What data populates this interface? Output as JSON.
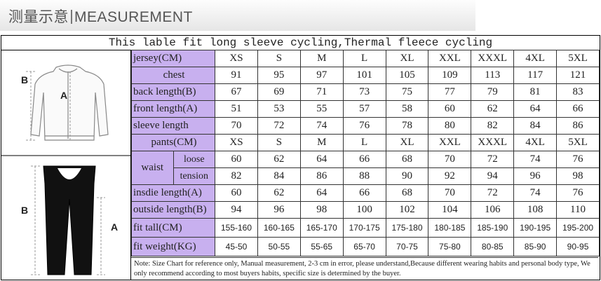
{
  "header": {
    "title_cn": "测量示意",
    "title_en": "MEASUREMENT"
  },
  "caption": "This lable fit long sleeve cycling,Thermal fleece cycling",
  "figure": {
    "jersey_label_b": "B",
    "jersey_label_a": "A",
    "pants_label_b": "B",
    "pants_label_a": "A"
  },
  "jersey_table": {
    "header_label": "jersey(CM)",
    "sizes": [
      "XS",
      "S",
      "M",
      "L",
      "XL",
      "XXL",
      "XXXL",
      "4XL",
      "5XL"
    ],
    "rows": [
      {
        "label": "chest",
        "values": [
          "91",
          "95",
          "97",
          "101",
          "105",
          "109",
          "113",
          "117",
          "121"
        ]
      },
      {
        "label": "back length(B)",
        "values": [
          "67",
          "69",
          "71",
          "73",
          "75",
          "77",
          "79",
          "81",
          "83"
        ]
      },
      {
        "label": "front length(A)",
        "values": [
          "51",
          "53",
          "55",
          "57",
          "58",
          "60",
          "62",
          "64",
          "66"
        ]
      },
      {
        "label": "sleeve length",
        "values": [
          "70",
          "72",
          "74",
          "76",
          "78",
          "80",
          "82",
          "84",
          "86"
        ]
      }
    ]
  },
  "pants_table": {
    "header_label": "pants(CM)",
    "sizes": [
      "XS",
      "S",
      "M",
      "L",
      "XL",
      "XXL",
      "XXXL",
      "4XL",
      "5XL"
    ],
    "waist_label": "waist",
    "loose_label": "loose",
    "loose_values": [
      "60",
      "62",
      "64",
      "66",
      "68",
      "70",
      "72",
      "74",
      "76"
    ],
    "tension_label": "tension",
    "tension_values": [
      "82",
      "84",
      "86",
      "88",
      "90",
      "92",
      "94",
      "96",
      "98"
    ],
    "rows": [
      {
        "label": "insdie length(A)",
        "values": [
          "60",
          "62",
          "64",
          "66",
          "68",
          "70",
          "72",
          "74",
          "76"
        ]
      },
      {
        "label": "outside length(B)",
        "values": [
          "94",
          "96",
          "98",
          "100",
          "102",
          "104",
          "106",
          "108",
          "110"
        ]
      }
    ]
  },
  "fit_rows": [
    {
      "label": "fit tall(CM)",
      "values": [
        "155-160",
        "160-165",
        "165-170",
        "170-175",
        "175-180",
        "180-185",
        "185-190",
        "190-195",
        "195-200"
      ]
    },
    {
      "label": "fit weight(KG)",
      "values": [
        "45-50",
        "50-55",
        "55-65",
        "65-70",
        "70-75",
        "75-80",
        "80-85",
        "85-90",
        "90-95"
      ]
    }
  ],
  "note": "Note: Size Chart for reference only, Manual measurement, 2-3 cm in error, please understand,Because different wearing habits and personal body type, We only recommend according to most buyers habits, specific size is determined by the buyer.",
  "colors": {
    "label_bg": "#c8b0ef",
    "border": "#333333"
  }
}
